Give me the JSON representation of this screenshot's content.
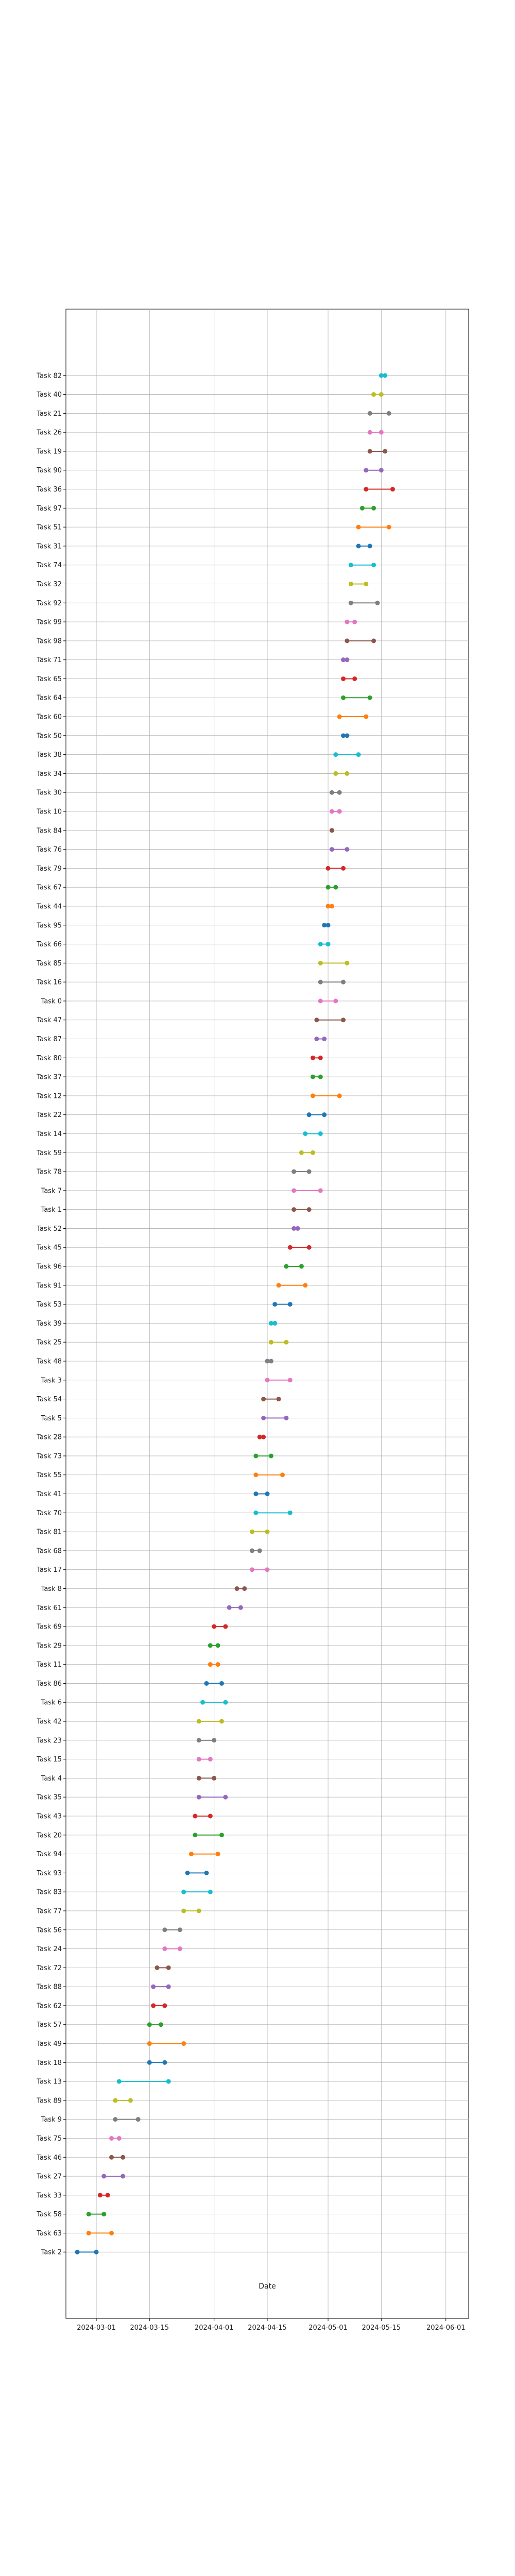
{
  "chart_data": {
    "type": "dumbbell",
    "title": "",
    "xlabel": "Date",
    "ylabel": "",
    "grid": true,
    "legend": "none",
    "x_ticks": [
      "2024-03-01",
      "2024-03-15",
      "2024-04-01",
      "2024-04-15",
      "2024-05-01",
      "2024-05-15",
      "2024-06-01"
    ],
    "xlim": [
      "2024-02-22",
      "2024-06-07"
    ],
    "colors": [
      "#1f77b4",
      "#ff7f0e",
      "#2ca02c",
      "#d62728",
      "#9467bd",
      "#8c564b",
      "#e377c2",
      "#7f7f7f",
      "#bcbd22",
      "#17becf"
    ],
    "tasks": [
      {
        "name": "Task 2",
        "start": "2024-02-25",
        "end": "2024-03-01"
      },
      {
        "name": "Task 63",
        "start": "2024-02-28",
        "end": "2024-03-05"
      },
      {
        "name": "Task 58",
        "start": "2024-02-28",
        "end": "2024-03-03"
      },
      {
        "name": "Task 33",
        "start": "2024-03-02",
        "end": "2024-03-04"
      },
      {
        "name": "Task 27",
        "start": "2024-03-03",
        "end": "2024-03-08"
      },
      {
        "name": "Task 46",
        "start": "2024-03-05",
        "end": "2024-03-08"
      },
      {
        "name": "Task 75",
        "start": "2024-03-05",
        "end": "2024-03-07"
      },
      {
        "name": "Task 9",
        "start": "2024-03-06",
        "end": "2024-03-12"
      },
      {
        "name": "Task 89",
        "start": "2024-03-06",
        "end": "2024-03-10"
      },
      {
        "name": "Task 13",
        "start": "2024-03-07",
        "end": "2024-03-20"
      },
      {
        "name": "Task 18",
        "start": "2024-03-15",
        "end": "2024-03-19"
      },
      {
        "name": "Task 49",
        "start": "2024-03-15",
        "end": "2024-03-24"
      },
      {
        "name": "Task 57",
        "start": "2024-03-15",
        "end": "2024-03-18"
      },
      {
        "name": "Task 62",
        "start": "2024-03-16",
        "end": "2024-03-19"
      },
      {
        "name": "Task 88",
        "start": "2024-03-16",
        "end": "2024-03-20"
      },
      {
        "name": "Task 72",
        "start": "2024-03-17",
        "end": "2024-03-20"
      },
      {
        "name": "Task 24",
        "start": "2024-03-19",
        "end": "2024-03-23"
      },
      {
        "name": "Task 56",
        "start": "2024-03-19",
        "end": "2024-03-23"
      },
      {
        "name": "Task 77",
        "start": "2024-03-24",
        "end": "2024-03-28"
      },
      {
        "name": "Task 83",
        "start": "2024-03-24",
        "end": "2024-03-31"
      },
      {
        "name": "Task 93",
        "start": "2024-03-25",
        "end": "2024-03-30"
      },
      {
        "name": "Task 94",
        "start": "2024-03-26",
        "end": "2024-04-02"
      },
      {
        "name": "Task 20",
        "start": "2024-03-27",
        "end": "2024-04-03"
      },
      {
        "name": "Task 43",
        "start": "2024-03-27",
        "end": "2024-03-31"
      },
      {
        "name": "Task 35",
        "start": "2024-03-28",
        "end": "2024-04-04"
      },
      {
        "name": "Task 4",
        "start": "2024-03-28",
        "end": "2024-04-01"
      },
      {
        "name": "Task 15",
        "start": "2024-03-28",
        "end": "2024-03-31"
      },
      {
        "name": "Task 23",
        "start": "2024-03-28",
        "end": "2024-04-01"
      },
      {
        "name": "Task 42",
        "start": "2024-03-28",
        "end": "2024-04-03"
      },
      {
        "name": "Task 6",
        "start": "2024-03-29",
        "end": "2024-04-04"
      },
      {
        "name": "Task 86",
        "start": "2024-03-30",
        "end": "2024-04-03"
      },
      {
        "name": "Task 11",
        "start": "2024-03-31",
        "end": "2024-04-02"
      },
      {
        "name": "Task 29",
        "start": "2024-03-31",
        "end": "2024-04-02"
      },
      {
        "name": "Task 69",
        "start": "2024-04-01",
        "end": "2024-04-04"
      },
      {
        "name": "Task 61",
        "start": "2024-04-05",
        "end": "2024-04-08"
      },
      {
        "name": "Task 8",
        "start": "2024-04-07",
        "end": "2024-04-09"
      },
      {
        "name": "Task 17",
        "start": "2024-04-11",
        "end": "2024-04-15"
      },
      {
        "name": "Task 68",
        "start": "2024-04-11",
        "end": "2024-04-13"
      },
      {
        "name": "Task 81",
        "start": "2024-04-11",
        "end": "2024-04-15"
      },
      {
        "name": "Task 70",
        "start": "2024-04-12",
        "end": "2024-04-21"
      },
      {
        "name": "Task 41",
        "start": "2024-04-12",
        "end": "2024-04-15"
      },
      {
        "name": "Task 55",
        "start": "2024-04-12",
        "end": "2024-04-19"
      },
      {
        "name": "Task 73",
        "start": "2024-04-12",
        "end": "2024-04-16"
      },
      {
        "name": "Task 28",
        "start": "2024-04-13",
        "end": "2024-04-14"
      },
      {
        "name": "Task 5",
        "start": "2024-04-14",
        "end": "2024-04-20"
      },
      {
        "name": "Task 54",
        "start": "2024-04-14",
        "end": "2024-04-18"
      },
      {
        "name": "Task 3",
        "start": "2024-04-15",
        "end": "2024-04-21"
      },
      {
        "name": "Task 48",
        "start": "2024-04-15",
        "end": "2024-04-16"
      },
      {
        "name": "Task 25",
        "start": "2024-04-16",
        "end": "2024-04-20"
      },
      {
        "name": "Task 39",
        "start": "2024-04-16",
        "end": "2024-04-17"
      },
      {
        "name": "Task 53",
        "start": "2024-04-17",
        "end": "2024-04-21"
      },
      {
        "name": "Task 91",
        "start": "2024-04-18",
        "end": "2024-04-25"
      },
      {
        "name": "Task 96",
        "start": "2024-04-20",
        "end": "2024-04-24"
      },
      {
        "name": "Task 45",
        "start": "2024-04-21",
        "end": "2024-04-26"
      },
      {
        "name": "Task 52",
        "start": "2024-04-22",
        "end": "2024-04-23"
      },
      {
        "name": "Task 1",
        "start": "2024-04-22",
        "end": "2024-04-26"
      },
      {
        "name": "Task 7",
        "start": "2024-04-22",
        "end": "2024-04-29"
      },
      {
        "name": "Task 78",
        "start": "2024-04-22",
        "end": "2024-04-26"
      },
      {
        "name": "Task 59",
        "start": "2024-04-24",
        "end": "2024-04-27"
      },
      {
        "name": "Task 14",
        "start": "2024-04-25",
        "end": "2024-04-29"
      },
      {
        "name": "Task 22",
        "start": "2024-04-26",
        "end": "2024-04-30"
      },
      {
        "name": "Task 12",
        "start": "2024-04-27",
        "end": "2024-05-04"
      },
      {
        "name": "Task 37",
        "start": "2024-04-27",
        "end": "2024-04-29"
      },
      {
        "name": "Task 80",
        "start": "2024-04-27",
        "end": "2024-04-29"
      },
      {
        "name": "Task 87",
        "start": "2024-04-28",
        "end": "2024-04-30"
      },
      {
        "name": "Task 47",
        "start": "2024-04-28",
        "end": "2024-05-05"
      },
      {
        "name": "Task 0",
        "start": "2024-04-29",
        "end": "2024-05-03"
      },
      {
        "name": "Task 16",
        "start": "2024-04-29",
        "end": "2024-05-05"
      },
      {
        "name": "Task 85",
        "start": "2024-04-29",
        "end": "2024-05-06"
      },
      {
        "name": "Task 66",
        "start": "2024-04-29",
        "end": "2024-05-01"
      },
      {
        "name": "Task 95",
        "start": "2024-04-30",
        "end": "2024-05-01"
      },
      {
        "name": "Task 44",
        "start": "2024-05-01",
        "end": "2024-05-02"
      },
      {
        "name": "Task 67",
        "start": "2024-05-01",
        "end": "2024-05-03"
      },
      {
        "name": "Task 79",
        "start": "2024-05-01",
        "end": "2024-05-05"
      },
      {
        "name": "Task 76",
        "start": "2024-05-02",
        "end": "2024-05-06"
      },
      {
        "name": "Task 84",
        "start": "2024-05-02",
        "end": "2024-05-02"
      },
      {
        "name": "Task 10",
        "start": "2024-05-02",
        "end": "2024-05-04"
      },
      {
        "name": "Task 30",
        "start": "2024-05-02",
        "end": "2024-05-04"
      },
      {
        "name": "Task 34",
        "start": "2024-05-03",
        "end": "2024-05-06"
      },
      {
        "name": "Task 38",
        "start": "2024-05-03",
        "end": "2024-05-09"
      },
      {
        "name": "Task 50",
        "start": "2024-05-05",
        "end": "2024-05-06"
      },
      {
        "name": "Task 60",
        "start": "2024-05-04",
        "end": "2024-05-11"
      },
      {
        "name": "Task 64",
        "start": "2024-05-05",
        "end": "2024-05-12"
      },
      {
        "name": "Task 65",
        "start": "2024-05-05",
        "end": "2024-05-08"
      },
      {
        "name": "Task 71",
        "start": "2024-05-05",
        "end": "2024-05-06"
      },
      {
        "name": "Task 98",
        "start": "2024-05-06",
        "end": "2024-05-13"
      },
      {
        "name": "Task 99",
        "start": "2024-05-06",
        "end": "2024-05-08"
      },
      {
        "name": "Task 92",
        "start": "2024-05-07",
        "end": "2024-05-14"
      },
      {
        "name": "Task 32",
        "start": "2024-05-07",
        "end": "2024-05-11"
      },
      {
        "name": "Task 74",
        "start": "2024-05-07",
        "end": "2024-05-13"
      },
      {
        "name": "Task 31",
        "start": "2024-05-09",
        "end": "2024-05-12"
      },
      {
        "name": "Task 51",
        "start": "2024-05-09",
        "end": "2024-05-17"
      },
      {
        "name": "Task 97",
        "start": "2024-05-10",
        "end": "2024-05-13"
      },
      {
        "name": "Task 36",
        "start": "2024-05-11",
        "end": "2024-05-18"
      },
      {
        "name": "Task 90",
        "start": "2024-05-11",
        "end": "2024-05-15"
      },
      {
        "name": "Task 19",
        "start": "2024-05-12",
        "end": "2024-05-16"
      },
      {
        "name": "Task 26",
        "start": "2024-05-12",
        "end": "2024-05-15"
      },
      {
        "name": "Task 21",
        "start": "2024-05-12",
        "end": "2024-05-17"
      },
      {
        "name": "Task 40",
        "start": "2024-05-13",
        "end": "2024-05-15"
      },
      {
        "name": "Task 82",
        "start": "2024-05-15",
        "end": "2024-05-16"
      }
    ]
  }
}
